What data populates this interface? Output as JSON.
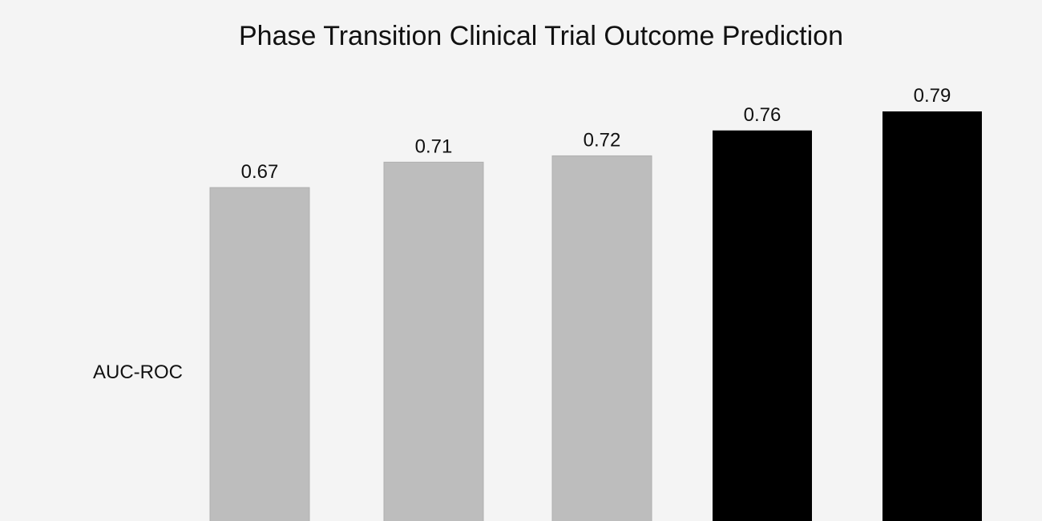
{
  "chart_data": {
    "type": "bar",
    "title": "Phase Transition Clinical Trial Outcome Prediction",
    "ylabel": "AUC-ROC",
    "xlabel": "",
    "values": [
      0.67,
      0.71,
      0.72,
      0.76,
      0.79
    ],
    "value_labels": [
      "0.67",
      "0.71",
      "0.72",
      "0.76",
      "0.79"
    ],
    "bar_colors": [
      "#bdbdbd",
      "#bdbdbd",
      "#bdbdbd",
      "#000000",
      "#000000"
    ],
    "grid": false,
    "legend": "none"
  }
}
